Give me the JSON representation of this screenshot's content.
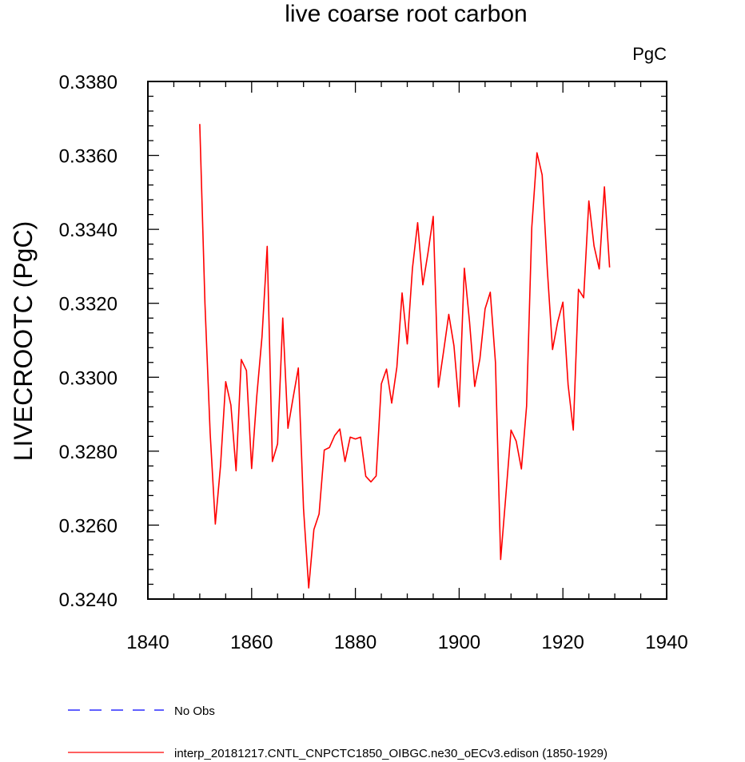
{
  "chart_data": {
    "type": "line",
    "title": "live coarse root carbon",
    "units_label": "PgC",
    "ylabel": "LIVECROOTC  (PgC)",
    "xlabel": "",
    "xlim": [
      1840,
      1940
    ],
    "ylim": [
      0.324,
      0.338
    ],
    "x_ticks": [
      1840,
      1860,
      1880,
      1900,
      1920,
      1940
    ],
    "x_tick_labels": [
      "1840",
      "1860",
      "1880",
      "1900",
      "1920",
      "1940"
    ],
    "y_ticks": [
      0.324,
      0.326,
      0.328,
      0.33,
      0.332,
      0.334,
      0.336,
      0.338
    ],
    "y_tick_labels": [
      "0.3240",
      "0.3260",
      "0.3280",
      "0.3300",
      "0.3320",
      "0.3340",
      "0.3360",
      "0.3380"
    ],
    "x_minor_step": 5,
    "y_minor_step": 0.0004,
    "grid": false,
    "legend_position": "bottom-left",
    "series": [
      {
        "name": "No Obs",
        "color": "#0000ff",
        "style": "dashed",
        "x": [],
        "values": []
      },
      {
        "name": "interp_20181217.CNTL_CNPCTC1850_OIBGC.ne30_oECv3.edison (1850-1929)",
        "color": "#ff0000",
        "style": "solid",
        "x": [
          1850,
          1851,
          1852,
          1853,
          1854,
          1855,
          1856,
          1857,
          1858,
          1859,
          1860,
          1861,
          1862,
          1863,
          1864,
          1865,
          1866,
          1867,
          1868,
          1869,
          1870,
          1871,
          1872,
          1873,
          1874,
          1875,
          1876,
          1877,
          1878,
          1879,
          1880,
          1881,
          1882,
          1883,
          1884,
          1885,
          1886,
          1887,
          1888,
          1889,
          1890,
          1891,
          1892,
          1893,
          1894,
          1895,
          1896,
          1897,
          1898,
          1899,
          1900,
          1901,
          1902,
          1903,
          1904,
          1905,
          1906,
          1907,
          1908,
          1909,
          1910,
          1911,
          1912,
          1913,
          1914,
          1915,
          1916,
          1917,
          1918,
          1919,
          1920,
          1921,
          1922,
          1923,
          1924,
          1925,
          1926,
          1927,
          1928,
          1929
        ],
        "values": [
          0.33685,
          0.332,
          0.3285,
          0.32603,
          0.3276,
          0.32988,
          0.32925,
          0.32747,
          0.33048,
          0.33018,
          0.32753,
          0.3295,
          0.3311,
          0.33354,
          0.32772,
          0.3282,
          0.3316,
          0.32862,
          0.32945,
          0.33025,
          0.32645,
          0.3243,
          0.32588,
          0.3263,
          0.32803,
          0.3281,
          0.32842,
          0.3286,
          0.32772,
          0.32838,
          0.32833,
          0.32838,
          0.32732,
          0.32717,
          0.32733,
          0.32982,
          0.33022,
          0.3293,
          0.33028,
          0.33228,
          0.3309,
          0.33295,
          0.33418,
          0.3325,
          0.33337,
          0.33435,
          0.32973,
          0.3307,
          0.3317,
          0.33085,
          0.3292,
          0.33295,
          0.3315,
          0.32975,
          0.3305,
          0.33185,
          0.3323,
          0.3304,
          0.32507,
          0.3268,
          0.32857,
          0.32827,
          0.32752,
          0.32922,
          0.33405,
          0.33607,
          0.33547,
          0.3329,
          0.33075,
          0.3315,
          0.33203,
          0.3298,
          0.32857,
          0.33238,
          0.33215,
          0.33477,
          0.33355,
          0.33293,
          0.33515,
          0.33297
        ]
      }
    ]
  }
}
